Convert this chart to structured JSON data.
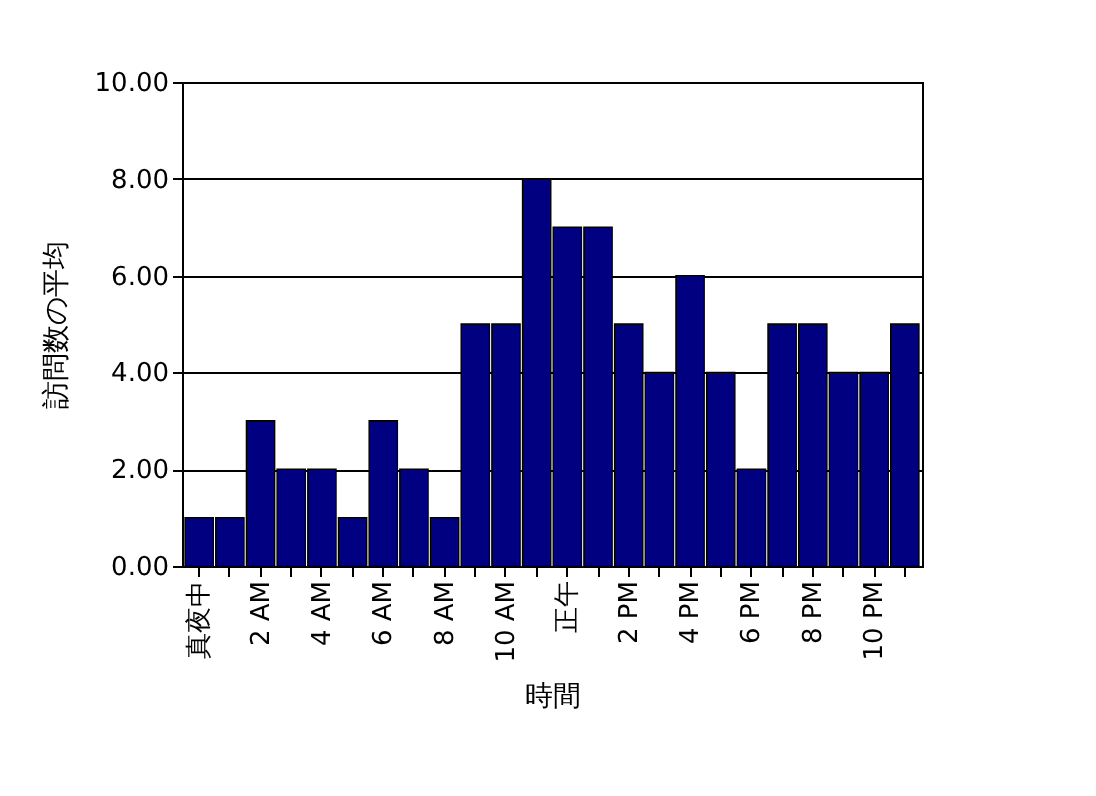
{
  "chart_data": {
    "type": "bar",
    "xlabel": "時間",
    "ylabel": "訪問数の平均",
    "categories": [
      "真夜中",
      null,
      "2 AM",
      null,
      "4 AM",
      null,
      "6 AM",
      null,
      "8 AM",
      null,
      "10 AM",
      null,
      "正午",
      null,
      "2 PM",
      null,
      "4 PM",
      null,
      "6 PM",
      null,
      "8 PM",
      null,
      "10 PM",
      null
    ],
    "values": [
      1,
      1,
      3,
      2,
      2,
      1,
      3,
      2,
      1,
      5,
      5,
      8,
      7,
      7,
      5,
      4,
      6,
      4,
      2,
      5,
      5,
      4,
      4,
      5
    ],
    "color": "#000080",
    "ylim": [
      0,
      10
    ],
    "yticks": [
      {
        "value": 0,
        "label": "0.00"
      },
      {
        "value": 2,
        "label": "2.00"
      },
      {
        "value": 4,
        "label": "4.00"
      },
      {
        "value": 6,
        "label": "6.00"
      },
      {
        "value": 8,
        "label": "8.00"
      },
      {
        "value": 10,
        "label": "10.00"
      }
    ],
    "grid": "y"
  }
}
